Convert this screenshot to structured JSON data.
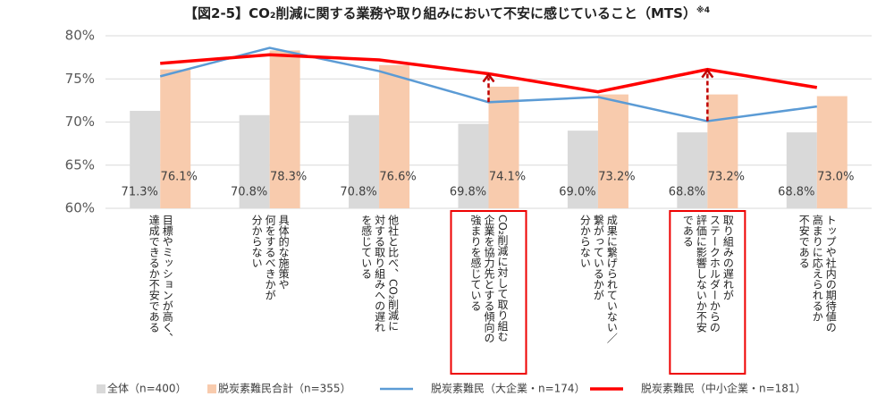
{
  "chart_data": {
    "type": "bar_line",
    "title": "【図2-5】CO₂削減に関する業務や取り組みにおいて不安に感じていること（MTS）",
    "title_note": "※4",
    "categories": [
      "目標やミッションが高く、\n達成できるか不安である",
      "具体的な施策や\n何をするべきかが\n分からない",
      "他社と比べ、CO₂削減に\n対する取り組みへの遅れ\nを感じている",
      "CO₂削減に対して取り組む\n企業を協力先とする傾向の\n強まりを感じている",
      "成果に繋げられていない／\n繋がっているかが\n分からない",
      "取り組みの遅れが\nステークホルダーからの\n評価に影響しないか不安\nである",
      "トップや社内の期待値の\n高まりに応えられるか\n不安である"
    ],
    "series": [
      {
        "name": "全体（n=400）",
        "kind": "bar",
        "color": "#d9d9d9",
        "values": [
          71.3,
          70.8,
          70.8,
          69.8,
          69.0,
          68.8,
          68.8
        ],
        "value_labels": [
          "71.3%",
          "70.8%",
          "70.8%",
          "69.8%",
          "69.0%",
          "68.8%",
          "68.8%"
        ]
      },
      {
        "name": "脱炭素難民合計（n=355）",
        "kind": "bar",
        "color": "#f8cbad",
        "values": [
          76.1,
          78.3,
          76.6,
          74.1,
          73.2,
          73.2,
          73.0
        ],
        "value_labels": [
          "76.1%",
          "78.3%",
          "76.6%",
          "74.1%",
          "73.2%",
          "73.2%",
          "73.0%"
        ]
      },
      {
        "name": "脱炭素難民（大企業・n=174）",
        "kind": "line",
        "color": "#5b9bd5",
        "values": [
          75.3,
          78.6,
          75.9,
          72.3,
          72.9,
          70.1,
          71.8
        ]
      },
      {
        "name": "脱炭素難民（中小企業・n=181）",
        "kind": "line",
        "color": "#ff0000",
        "values": [
          76.8,
          77.8,
          77.2,
          75.6,
          73.5,
          76.1,
          74.0
        ]
      }
    ],
    "ylim": [
      60,
      80
    ],
    "yticks": [
      {
        "value": 60,
        "label": "60%"
      },
      {
        "value": 65,
        "label": "65%"
      },
      {
        "value": 70,
        "label": "70%"
      },
      {
        "value": 75,
        "label": "75%"
      },
      {
        "value": 80,
        "label": "80%"
      }
    ],
    "grid": true
  }
}
